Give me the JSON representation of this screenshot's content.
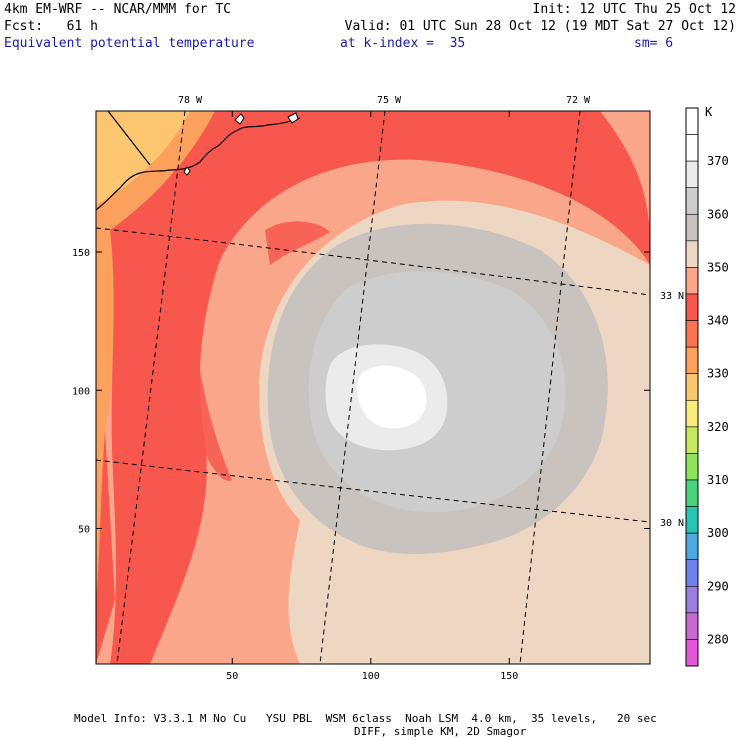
{
  "header": {
    "model_line": "4km EM-WRF -- NCAR/MMM for TC",
    "init_line": "Init: 12 UTC Thu 25 Oct 12",
    "fcst_line": "Fcst:   61 h",
    "valid_line": "Valid: 01 UTC Sun 28 Oct 12 (19 MDT Sat 27 Oct 12)",
    "field_name": "Equivalent potential temperature",
    "kindex_label": "at k-index =  35",
    "smooth_label": "sm= 6"
  },
  "map": {
    "x_ticks": [
      {
        "value": 50,
        "label": "50"
      },
      {
        "value": 100,
        "label": "100"
      },
      {
        "value": 150,
        "label": "150"
      }
    ],
    "y_ticks": [
      {
        "value": 150,
        "label": "150"
      },
      {
        "value": 100,
        "label": "100"
      },
      {
        "value": 50,
        "label": "50"
      }
    ],
    "lon_labels": [
      "78 W",
      "75 W",
      "72 W"
    ],
    "lat_labels": [
      "33 N",
      "30 N"
    ]
  },
  "colorbar": {
    "unit": "K",
    "levels": [
      {
        "color": "#ffffff",
        "label": ""
      },
      {
        "color": "#ffffff",
        "label": "370"
      },
      {
        "color": "#ebebeb",
        "label": ""
      },
      {
        "color": "#cdcdcd",
        "label": "360"
      },
      {
        "color": "#c8c3be",
        "label": ""
      },
      {
        "color": "#eed7c2",
        "label": "350"
      },
      {
        "color": "#f9a68a",
        "label": ""
      },
      {
        "color": "#f8574d",
        "label": "340"
      },
      {
        "color": "#fa7352",
        "label": ""
      },
      {
        "color": "#fba05d",
        "label": "330"
      },
      {
        "color": "#fbc66f",
        "label": ""
      },
      {
        "color": "#faec7c",
        "label": "320"
      },
      {
        "color": "#c6e85e",
        "label": ""
      },
      {
        "color": "#8de25e",
        "label": "310"
      },
      {
        "color": "#4ad37a",
        "label": ""
      },
      {
        "color": "#2ac4b2",
        "label": "300"
      },
      {
        "color": "#4fa8e2",
        "label": ""
      },
      {
        "color": "#6f82ec",
        "label": "290"
      },
      {
        "color": "#9d7dde",
        "label": ""
      },
      {
        "color": "#c66ad2",
        "label": "280"
      },
      {
        "color": "#e257d6",
        "label": ""
      }
    ]
  },
  "footer": {
    "line1": "Model Info: V3.3.1 M No Cu   YSU PBL  WSM 6class  Noah LSM  4.0 km,  35 levels,   20 sec",
    "line2": "DIFF, simple KM, 2D Smagor"
  }
}
